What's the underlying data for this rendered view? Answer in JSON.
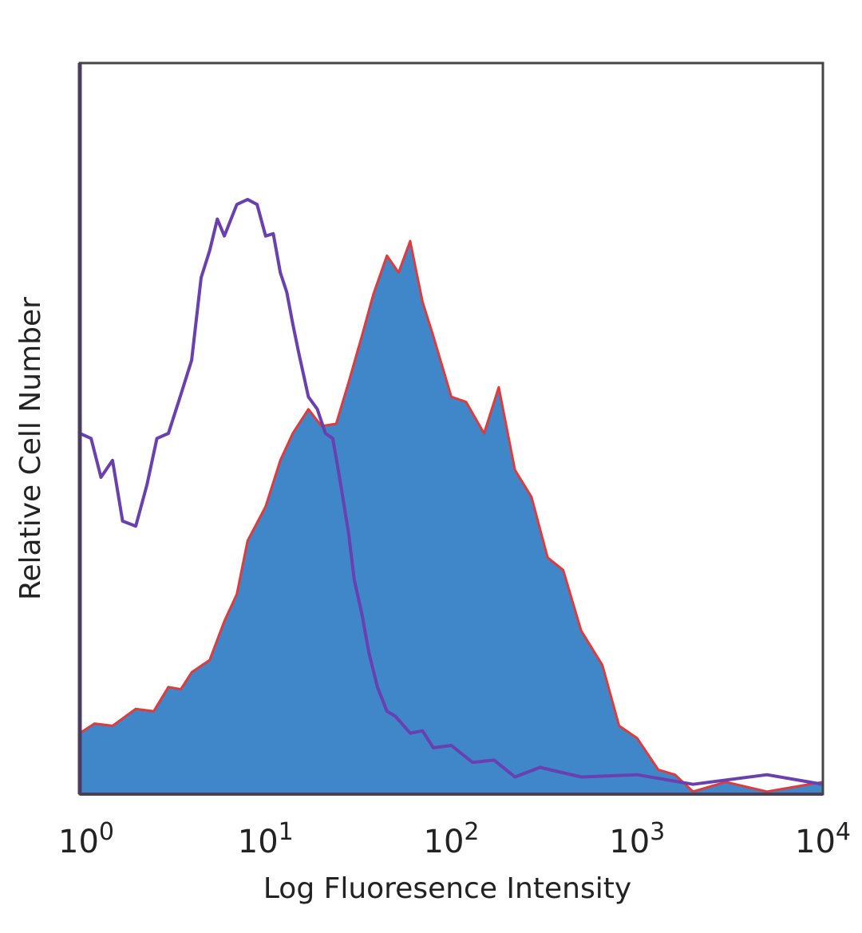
{
  "chart_data": {
    "type": "area",
    "title": "",
    "xlabel": "Log Fluoresence Intensity",
    "ylabel": "Relative Cell Number",
    "x_scale": "log",
    "xlim": [
      1,
      10000
    ],
    "ylim": [
      0,
      100
    ],
    "x_ticks": [
      {
        "base": "10",
        "exp": "0"
      },
      {
        "base": "10",
        "exp": "1"
      },
      {
        "base": "10",
        "exp": "2"
      },
      {
        "base": "10",
        "exp": "3"
      },
      {
        "base": "10",
        "exp": "4"
      }
    ],
    "grid": false,
    "legend": "none",
    "series": [
      {
        "style": "filled",
        "fill_color": "#3f87c8",
        "edge_color": "#e23a3a",
        "x": [
          1.0,
          1.2,
          1.5,
          2.0,
          2.5,
          3.0,
          3.5,
          4.0,
          5.0,
          6.0,
          7.0,
          8.0,
          10.0,
          12.0,
          14.0,
          17.0,
          20.0,
          24.0,
          28.0,
          33.0,
          38.0,
          45.0,
          52.0,
          60.0,
          70.0,
          80.0,
          100.0,
          120.0,
          150.0,
          180.0,
          220.0,
          270.0,
          330.0,
          400.0,
          500.0,
          650.0,
          800.0,
          1000.0,
          1300.0,
          1600.0,
          2000.0,
          3000.0,
          5000.0,
          10000.0
        ],
        "y": [
          9,
          9,
          10,
          11,
          12,
          14,
          15,
          16,
          19,
          23,
          28,
          34,
          40,
          45,
          50,
          52,
          51,
          50,
          57,
          62,
          69,
          73,
          72,
          75,
          68,
          62,
          55,
          53,
          50,
          55,
          45,
          40,
          33,
          30,
          23,
          17,
          10,
          7,
          4,
          2,
          1,
          1,
          1,
          1
        ]
      },
      {
        "style": "outline",
        "edge_color": "#6a3fb0",
        "x": [
          1.0,
          1.15,
          1.3,
          1.5,
          1.7,
          2.0,
          2.3,
          2.6,
          3.0,
          3.5,
          4.0,
          4.5,
          5.0,
          5.5,
          6.0,
          7.0,
          8.0,
          9.0,
          10.0,
          11.0,
          12.0,
          13.0,
          14.0,
          15.0,
          17.0,
          19.0,
          21.0,
          23.0,
          25.0,
          28.0,
          30.0,
          33.0,
          36.0,
          40.0,
          45.0,
          50.0,
          60.0,
          70.0,
          80.0,
          100.0,
          130.0,
          170.0,
          220.0,
          300.0,
          500.0,
          1000.0,
          2000.0,
          5000.0,
          10000.0
        ],
        "y": [
          50,
          48,
          44,
          45,
          38,
          36,
          43,
          48,
          50,
          54,
          60,
          70,
          75,
          78,
          77,
          80,
          82,
          80,
          77,
          76,
          72,
          68,
          65,
          60,
          55,
          52,
          50,
          48,
          44,
          35,
          30,
          24,
          20,
          14,
          12,
          10,
          9,
          8,
          7,
          6,
          5,
          4,
          3,
          3,
          3,
          2,
          2,
          2,
          2
        ]
      }
    ]
  }
}
